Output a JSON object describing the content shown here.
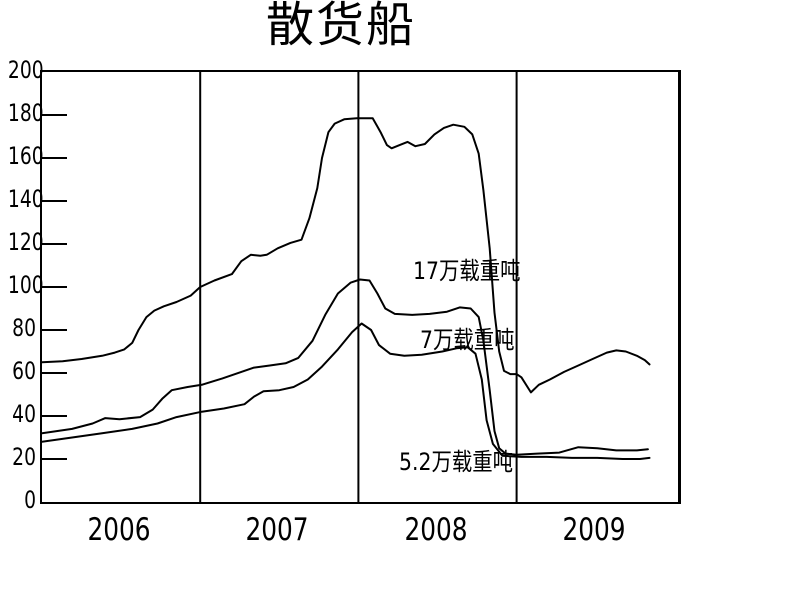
{
  "title": "散货船",
  "chart_data": {
    "type": "line",
    "title": "散货船",
    "xlabel": "",
    "ylabel": "",
    "xlim": [
      2005.5,
      2009.52
    ],
    "ylim": [
      0,
      200
    ],
    "y_ticks": [
      0,
      20,
      40,
      60,
      80,
      100,
      120,
      140,
      160,
      180,
      200
    ],
    "x_year_labels": [
      "2006",
      "2007",
      "2008",
      "2009"
    ],
    "year_boundaries": [
      2006.5,
      2007.5,
      2008.5
    ],
    "grid": "vertical-year-separators-only",
    "legend_position": "inline-annotations-on-plot",
    "line_color": "#000000",
    "background": "#ffffff",
    "series": [
      {
        "name": "17万载重吨",
        "points": [
          [
            2005.5,
            65
          ],
          [
            2005.63,
            65.5
          ],
          [
            2005.75,
            66.5
          ],
          [
            2005.88,
            68
          ],
          [
            2005.96,
            69.5
          ],
          [
            2006.02,
            71
          ],
          [
            2006.07,
            74
          ],
          [
            2006.11,
            80
          ],
          [
            2006.16,
            86
          ],
          [
            2006.21,
            89
          ],
          [
            2006.27,
            91
          ],
          [
            2006.35,
            93
          ],
          [
            2006.44,
            96
          ],
          [
            2006.5,
            100
          ],
          [
            2006.59,
            103
          ],
          [
            2006.7,
            106
          ],
          [
            2006.76,
            112
          ],
          [
            2006.82,
            115
          ],
          [
            2006.88,
            114.5
          ],
          [
            2006.92,
            115
          ],
          [
            2006.99,
            118
          ],
          [
            2007.07,
            120.5
          ],
          [
            2007.14,
            122
          ],
          [
            2007.19,
            132
          ],
          [
            2007.24,
            146
          ],
          [
            2007.27,
            160
          ],
          [
            2007.31,
            172
          ],
          [
            2007.35,
            176
          ],
          [
            2007.41,
            178
          ],
          [
            2007.49,
            178.5
          ],
          [
            2007.59,
            178.5
          ],
          [
            2007.64,
            172
          ],
          [
            2007.68,
            166
          ],
          [
            2007.71,
            164.5
          ],
          [
            2007.76,
            166
          ],
          [
            2007.81,
            167.5
          ],
          [
            2007.86,
            165.5
          ],
          [
            2007.92,
            166.5
          ],
          [
            2007.98,
            171
          ],
          [
            2008.04,
            174
          ],
          [
            2008.1,
            175.5
          ],
          [
            2008.17,
            174.5
          ],
          [
            2008.22,
            171
          ],
          [
            2008.26,
            162
          ],
          [
            2008.29,
            145
          ],
          [
            2008.33,
            118
          ],
          [
            2008.36,
            88
          ],
          [
            2008.39,
            70
          ],
          [
            2008.42,
            61
          ],
          [
            2008.46,
            59.5
          ],
          [
            2008.5,
            59.5
          ],
          [
            2008.53,
            58
          ],
          [
            2008.59,
            51
          ],
          [
            2008.64,
            54.5
          ],
          [
            2008.71,
            57
          ],
          [
            2008.8,
            60.5
          ],
          [
            2008.89,
            63.5
          ],
          [
            2008.98,
            66.5
          ],
          [
            2009.07,
            69.5
          ],
          [
            2009.13,
            70.5
          ],
          [
            2009.19,
            70
          ],
          [
            2009.26,
            68
          ],
          [
            2009.31,
            66
          ],
          [
            2009.34,
            64
          ]
        ]
      },
      {
        "name": "7万载重吨",
        "points": [
          [
            2005.5,
            32
          ],
          [
            2005.69,
            34
          ],
          [
            2005.82,
            36.5
          ],
          [
            2005.9,
            39
          ],
          [
            2005.99,
            38.5
          ],
          [
            2006.12,
            39.5
          ],
          [
            2006.2,
            43
          ],
          [
            2006.26,
            48
          ],
          [
            2006.32,
            52
          ],
          [
            2006.42,
            53.5
          ],
          [
            2006.51,
            54.5
          ],
          [
            2006.64,
            57.5
          ],
          [
            2006.76,
            60.5
          ],
          [
            2006.84,
            62.5
          ],
          [
            2006.94,
            63.5
          ],
          [
            2007.04,
            64.5
          ],
          [
            2007.12,
            67
          ],
          [
            2007.21,
            75
          ],
          [
            2007.29,
            87
          ],
          [
            2007.37,
            97
          ],
          [
            2007.45,
            102
          ],
          [
            2007.51,
            103.5
          ],
          [
            2007.57,
            103
          ],
          [
            2007.62,
            97
          ],
          [
            2007.67,
            90
          ],
          [
            2007.73,
            87.5
          ],
          [
            2007.84,
            87
          ],
          [
            2007.95,
            87.5
          ],
          [
            2008.06,
            88.5
          ],
          [
            2008.14,
            90.5
          ],
          [
            2008.21,
            90
          ],
          [
            2008.26,
            86
          ],
          [
            2008.29,
            75
          ],
          [
            2008.33,
            52
          ],
          [
            2008.36,
            33
          ],
          [
            2008.39,
            25
          ],
          [
            2008.43,
            22.5
          ],
          [
            2008.5,
            22
          ],
          [
            2008.63,
            22.5
          ],
          [
            2008.77,
            23
          ],
          [
            2008.89,
            25.5
          ],
          [
            2009.01,
            25
          ],
          [
            2009.13,
            24
          ],
          [
            2009.26,
            24
          ],
          [
            2009.33,
            24.5
          ]
        ]
      },
      {
        "name": "5.2万载重吨",
        "points": [
          [
            2005.5,
            28
          ],
          [
            2005.69,
            30
          ],
          [
            2005.88,
            32
          ],
          [
            2006.07,
            34
          ],
          [
            2006.23,
            36.5
          ],
          [
            2006.35,
            39.5
          ],
          [
            2006.51,
            42
          ],
          [
            2006.65,
            43.5
          ],
          [
            2006.78,
            45.5
          ],
          [
            2006.84,
            49
          ],
          [
            2006.9,
            51.5
          ],
          [
            2007.0,
            52
          ],
          [
            2007.09,
            53.5
          ],
          [
            2007.18,
            57
          ],
          [
            2007.27,
            63
          ],
          [
            2007.37,
            71
          ],
          [
            2007.46,
            79
          ],
          [
            2007.52,
            83
          ],
          [
            2007.58,
            80
          ],
          [
            2007.63,
            73
          ],
          [
            2007.7,
            69
          ],
          [
            2007.79,
            68
          ],
          [
            2007.9,
            68.5
          ],
          [
            2008.03,
            70
          ],
          [
            2008.12,
            71.5
          ],
          [
            2008.19,
            72
          ],
          [
            2008.24,
            69
          ],
          [
            2008.28,
            57
          ],
          [
            2008.31,
            38
          ],
          [
            2008.35,
            27
          ],
          [
            2008.41,
            21.5
          ],
          [
            2008.53,
            21
          ],
          [
            2008.69,
            21
          ],
          [
            2008.85,
            20.5
          ],
          [
            2009.01,
            20.5
          ],
          [
            2009.17,
            20
          ],
          [
            2009.28,
            20
          ],
          [
            2009.34,
            20.5
          ]
        ]
      }
    ],
    "annotations": [
      {
        "text": "17万载重吨"
      },
      {
        "text": "7万载重吨"
      },
      {
        "text": "5.2万载重吨"
      }
    ]
  }
}
